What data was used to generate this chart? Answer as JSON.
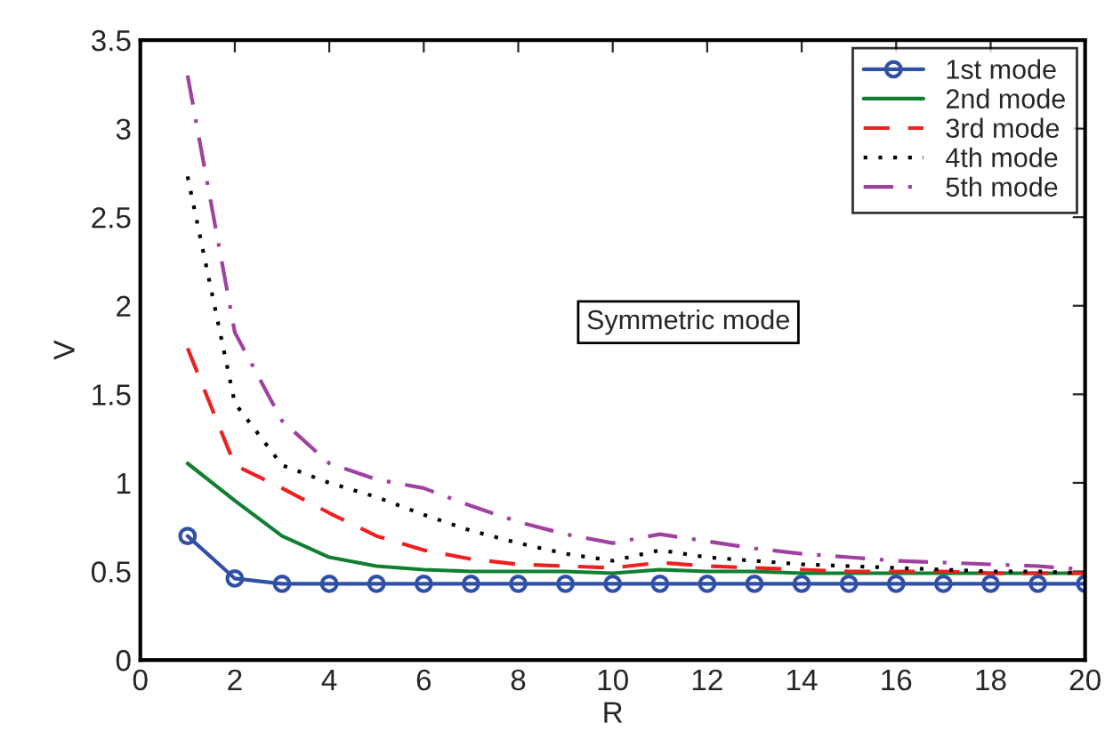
{
  "chart_data": {
    "type": "line",
    "xlabel": "R",
    "ylabel": "V",
    "x": [
      1,
      2,
      3,
      4,
      5,
      6,
      7,
      8,
      9,
      10,
      11,
      12,
      13,
      14,
      15,
      16,
      17,
      18,
      19,
      20
    ],
    "series": [
      {
        "name": "1st mode",
        "color": "#3050a8",
        "marker": "circle",
        "line_style": "solid",
        "values": [
          0.7,
          0.46,
          0.43,
          0.43,
          0.43,
          0.43,
          0.43,
          0.43,
          0.43,
          0.43,
          0.43,
          0.43,
          0.43,
          0.43,
          0.43,
          0.43,
          0.43,
          0.43,
          0.43,
          0.43
        ]
      },
      {
        "name": "2nd mode",
        "color": "#108030",
        "marker": "none",
        "line_style": "solid",
        "values": [
          1.11,
          0.9,
          0.7,
          0.58,
          0.53,
          0.51,
          0.5,
          0.5,
          0.5,
          0.49,
          0.51,
          0.5,
          0.5,
          0.49,
          0.49,
          0.49,
          0.49,
          0.49,
          0.49,
          0.49
        ]
      },
      {
        "name": "3rd mode",
        "color": "#ee2020",
        "marker": "none",
        "line_style": "dashed",
        "values": [
          1.76,
          1.1,
          0.97,
          0.83,
          0.7,
          0.62,
          0.57,
          0.54,
          0.53,
          0.52,
          0.55,
          0.53,
          0.52,
          0.51,
          0.5,
          0.5,
          0.5,
          0.49,
          0.49,
          0.49
        ]
      },
      {
        "name": "4th mode",
        "color": "#000000",
        "marker": "none",
        "line_style": "dotted",
        "values": [
          2.73,
          1.45,
          1.1,
          1.0,
          0.92,
          0.82,
          0.73,
          0.66,
          0.6,
          0.56,
          0.62,
          0.58,
          0.56,
          0.54,
          0.53,
          0.52,
          0.51,
          0.5,
          0.5,
          0.49
        ]
      },
      {
        "name": "5th mode",
        "color": "#a040a0",
        "marker": "none",
        "line_style": "dashdot",
        "values": [
          3.3,
          1.85,
          1.35,
          1.11,
          1.02,
          0.97,
          0.87,
          0.78,
          0.71,
          0.66,
          0.71,
          0.67,
          0.63,
          0.6,
          0.58,
          0.56,
          0.55,
          0.54,
          0.53,
          0.51
        ]
      }
    ],
    "xlim": [
      0,
      20
    ],
    "xticks": [
      0,
      2,
      4,
      6,
      8,
      10,
      12,
      14,
      16,
      18,
      20
    ],
    "ylim": [
      0,
      3.5
    ],
    "yticks": [
      0,
      0.5,
      1,
      1.5,
      2,
      2.5,
      3,
      3.5
    ],
    "annotations": [
      "Symmetric mode"
    ],
    "legend": "top right",
    "grid": false
  }
}
